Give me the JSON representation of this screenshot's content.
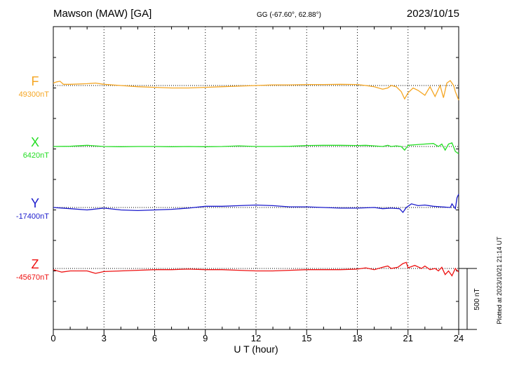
{
  "header": {
    "station": "Mawson (MAW)  [GA]",
    "coords": "GG (-67.60°,  62.88°)",
    "date": "2023/10/15"
  },
  "footer": {
    "plotted": "Plotted at 2023/10/21 21:14 UT"
  },
  "chart_data": {
    "type": "line",
    "xlabel": "U T (hour)",
    "xlim": [
      0,
      24
    ],
    "xticks": [
      0,
      3,
      6,
      9,
      12,
      15,
      18,
      21,
      24
    ],
    "grid": "dotted vertical every 3 hours",
    "scale_bar": {
      "label": "500 nT",
      "value_nT": 500
    },
    "series": [
      {
        "name": "F",
        "baseline_label": "49300nT",
        "baseline_nT": 49300,
        "color": "#f5a623",
        "points": [
          [
            0,
            49320
          ],
          [
            0.2,
            49330
          ],
          [
            0.4,
            49335
          ],
          [
            0.6,
            49310
          ],
          [
            1,
            49310
          ],
          [
            2,
            49315
          ],
          [
            2.5,
            49320
          ],
          [
            3,
            49310
          ],
          [
            4,
            49300
          ],
          [
            5,
            49290
          ],
          [
            6,
            49285
          ],
          [
            7,
            49280
          ],
          [
            8,
            49280
          ],
          [
            9,
            49285
          ],
          [
            10,
            49290
          ],
          [
            11,
            49295
          ],
          [
            12,
            49300
          ],
          [
            13,
            49305
          ],
          [
            14,
            49305
          ],
          [
            15,
            49308
          ],
          [
            16,
            49308
          ],
          [
            17,
            49310
          ],
          [
            18,
            49308
          ],
          [
            18.5,
            49300
          ],
          [
            19,
            49290
          ],
          [
            19.5,
            49270
          ],
          [
            19.8,
            49280
          ],
          [
            20,
            49300
          ],
          [
            20.3,
            49290
          ],
          [
            20.6,
            49250
          ],
          [
            20.8,
            49190
          ],
          [
            21,
            49240
          ],
          [
            21.3,
            49280
          ],
          [
            21.6,
            49260
          ],
          [
            22,
            49220
          ],
          [
            22.3,
            49290
          ],
          [
            22.6,
            49210
          ],
          [
            22.9,
            49300
          ],
          [
            23.1,
            49200
          ],
          [
            23.3,
            49320
          ],
          [
            23.5,
            49340
          ],
          [
            23.7,
            49300
          ],
          [
            23.8,
            49250
          ],
          [
            24,
            49180
          ]
        ]
      },
      {
        "name": "X",
        "baseline_label": "6420nT",
        "baseline_nT": 6420,
        "color": "#22dd22",
        "points": [
          [
            0,
            6420
          ],
          [
            1,
            6422
          ],
          [
            2,
            6430
          ],
          [
            3,
            6420
          ],
          [
            4,
            6418
          ],
          [
            5,
            6420
          ],
          [
            6,
            6420
          ],
          [
            7,
            6418
          ],
          [
            8,
            6420
          ],
          [
            9,
            6418
          ],
          [
            10,
            6420
          ],
          [
            11,
            6425
          ],
          [
            12,
            6420
          ],
          [
            13,
            6420
          ],
          [
            14,
            6422
          ],
          [
            15,
            6428
          ],
          [
            16,
            6430
          ],
          [
            17,
            6430
          ],
          [
            18,
            6428
          ],
          [
            18.5,
            6430
          ],
          [
            19,
            6425
          ],
          [
            19.5,
            6420
          ],
          [
            19.8,
            6430
          ],
          [
            20,
            6420
          ],
          [
            20.3,
            6425
          ],
          [
            20.6,
            6420
          ],
          [
            20.8,
            6390
          ],
          [
            21,
            6430
          ],
          [
            21.5,
            6435
          ],
          [
            22,
            6440
          ],
          [
            22.5,
            6445
          ],
          [
            22.8,
            6420
          ],
          [
            23,
            6440
          ],
          [
            23.2,
            6390
          ],
          [
            23.4,
            6440
          ],
          [
            23.6,
            6450
          ],
          [
            23.8,
            6380
          ],
          [
            24,
            6360
          ]
        ]
      },
      {
        "name": "Y",
        "baseline_label": "-17400nT",
        "baseline_nT": -17400,
        "color": "#1a1acc",
        "points": [
          [
            0,
            -17400
          ],
          [
            1,
            -17410
          ],
          [
            2,
            -17420
          ],
          [
            3,
            -17405
          ],
          [
            4,
            -17420
          ],
          [
            5,
            -17425
          ],
          [
            6,
            -17420
          ],
          [
            7,
            -17415
          ],
          [
            8,
            -17405
          ],
          [
            9,
            -17390
          ],
          [
            10,
            -17390
          ],
          [
            11,
            -17385
          ],
          [
            12,
            -17380
          ],
          [
            13,
            -17385
          ],
          [
            14,
            -17395
          ],
          [
            15,
            -17395
          ],
          [
            16,
            -17400
          ],
          [
            17,
            -17405
          ],
          [
            18,
            -17405
          ],
          [
            19,
            -17400
          ],
          [
            19.5,
            -17410
          ],
          [
            20,
            -17405
          ],
          [
            20.5,
            -17410
          ],
          [
            20.7,
            -17440
          ],
          [
            20.9,
            -17400
          ],
          [
            21.2,
            -17370
          ],
          [
            21.6,
            -17385
          ],
          [
            22,
            -17380
          ],
          [
            22.5,
            -17390
          ],
          [
            23,
            -17395
          ],
          [
            23.5,
            -17400
          ],
          [
            23.6,
            -17370
          ],
          [
            23.8,
            -17410
          ],
          [
            23.9,
            -17320
          ],
          [
            24,
            -17290
          ]
        ]
      },
      {
        "name": "Z",
        "baseline_label": "-45670nT",
        "baseline_nT": -45670,
        "color": "#ee1111",
        "points": [
          [
            0,
            -45680
          ],
          [
            0.5,
            -45700
          ],
          [
            1,
            -45690
          ],
          [
            2,
            -45690
          ],
          [
            2.5,
            -45710
          ],
          [
            3,
            -45695
          ],
          [
            4,
            -45690
          ],
          [
            5,
            -45685
          ],
          [
            6,
            -45680
          ],
          [
            7,
            -45680
          ],
          [
            8,
            -45675
          ],
          [
            9,
            -45680
          ],
          [
            10,
            -45680
          ],
          [
            11,
            -45685
          ],
          [
            12,
            -45690
          ],
          [
            13,
            -45690
          ],
          [
            14,
            -45685
          ],
          [
            15,
            -45680
          ],
          [
            16,
            -45680
          ],
          [
            17,
            -45680
          ],
          [
            18,
            -45675
          ],
          [
            18.5,
            -45665
          ],
          [
            19,
            -45680
          ],
          [
            19.5,
            -45660
          ],
          [
            19.8,
            -45650
          ],
          [
            20,
            -45670
          ],
          [
            20.4,
            -45660
          ],
          [
            20.7,
            -45630
          ],
          [
            20.9,
            -45620
          ],
          [
            21,
            -45665
          ],
          [
            21.4,
            -45645
          ],
          [
            21.8,
            -45670
          ],
          [
            22,
            -45650
          ],
          [
            22.3,
            -45680
          ],
          [
            22.6,
            -45670
          ],
          [
            22.8,
            -45690
          ],
          [
            23,
            -45660
          ],
          [
            23.2,
            -45720
          ],
          [
            23.4,
            -45690
          ],
          [
            23.6,
            -45730
          ],
          [
            23.8,
            -45670
          ],
          [
            24,
            -45700
          ]
        ]
      }
    ]
  }
}
